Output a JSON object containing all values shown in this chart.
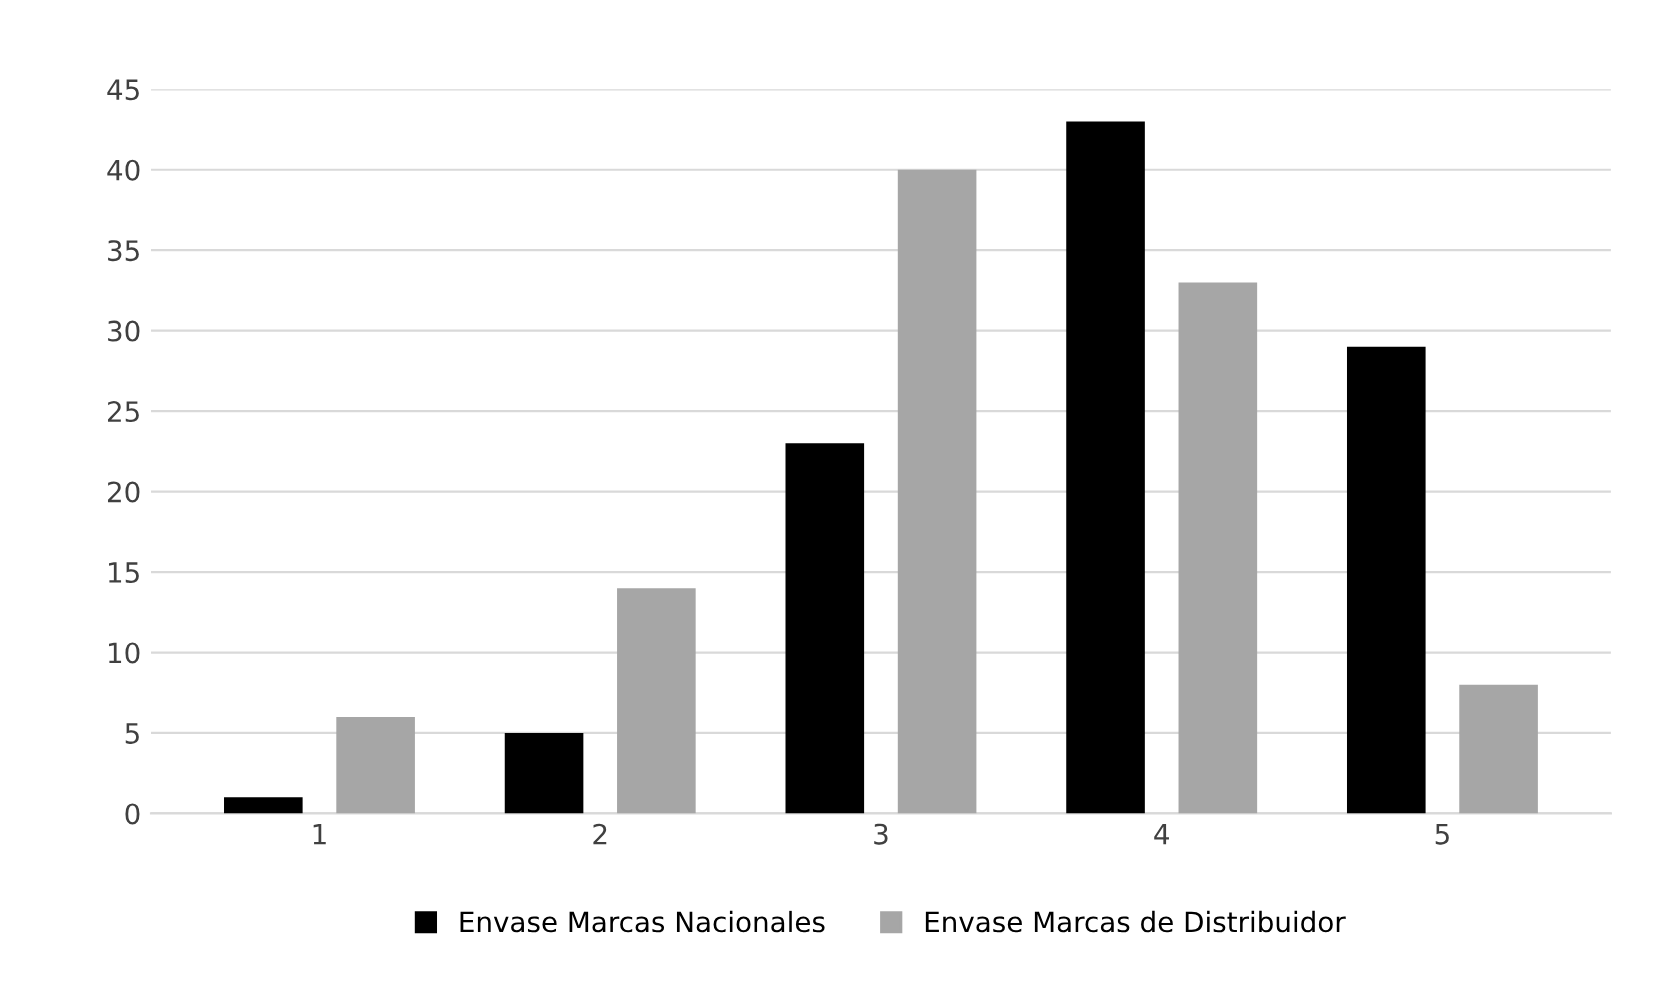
{
  "chart_data": {
    "type": "bar",
    "categories": [
      "1",
      "2",
      "3",
      "4",
      "5"
    ],
    "series": [
      {
        "name": "Envase Marcas Nacionales",
        "color": "#000000",
        "values": [
          1,
          5,
          23,
          43,
          29
        ]
      },
      {
        "name": "Envase Marcas de Distribuidor",
        "color": "#a6a6a6",
        "values": [
          6,
          14,
          40,
          33,
          8
        ]
      }
    ],
    "ylim": [
      0,
      45
    ],
    "yticks": [
      0,
      5,
      10,
      15,
      20,
      25,
      30,
      35,
      40,
      45
    ],
    "grid": "y",
    "legend": "bottom"
  }
}
